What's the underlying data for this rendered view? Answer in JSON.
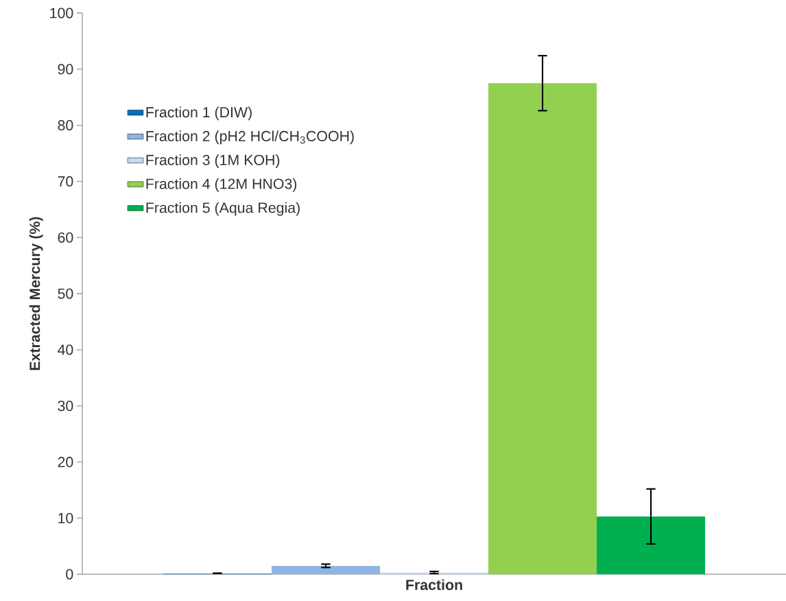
{
  "chart_data": {
    "type": "bar",
    "xlabel": "Fraction",
    "ylabel": "Extracted Mercury (%)",
    "categories": [
      null
    ],
    "series": [
      {
        "name": "Fraction 1 (DIW)",
        "color": "#0070c0",
        "values": [
          0.1
        ],
        "errors": [
          0.1
        ]
      },
      {
        "name": "Fraction 2 (pH2 HCl/CH$_{3}$COOH)",
        "color": "#8eb4e3",
        "values": [
          1.5
        ],
        "errors": [
          0.3
        ]
      },
      {
        "name": "Fraction 3 (1M KOH)",
        "color": "#c6d9f1",
        "values": [
          0.3
        ],
        "errors": [
          0.2
        ]
      },
      {
        "name": "Fraction 4 (12M HNO3)",
        "color": "#92d050",
        "values": [
          87.5
        ],
        "errors": [
          4.9
        ]
      },
      {
        "name": "Fraction 5 (Aqua Regia)",
        "color": "#00b050",
        "values": [
          10.3
        ],
        "errors": [
          4.9
        ]
      }
    ],
    "ylim": [
      0,
      100
    ],
    "yticks": [
      0,
      10,
      20,
      30,
      40,
      50,
      60,
      70,
      80,
      90,
      100
    ],
    "legend": "top left"
  }
}
